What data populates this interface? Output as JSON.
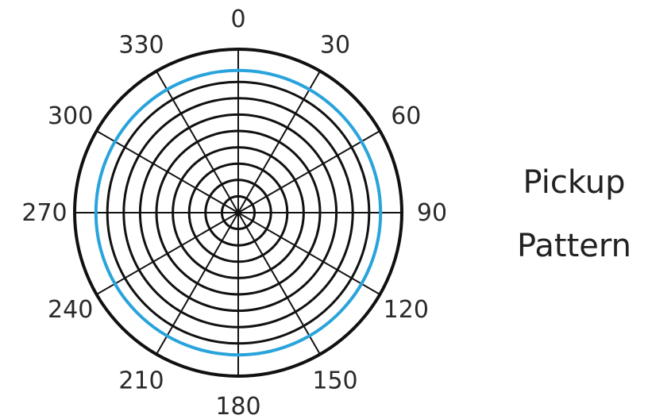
{
  "chart_data": {
    "type": "polar",
    "angular_ticks": [
      0,
      30,
      60,
      90,
      120,
      150,
      180,
      210,
      240,
      270,
      300,
      330
    ],
    "ring_count": 8,
    "series": [
      {
        "values_r": 0.87,
        "color": "#29a3db",
        "shape": "circle"
      }
    ],
    "grid": true
  },
  "caption": {
    "line1": "Pickup",
    "line2": "Pattern"
  },
  "colors": {
    "grid": "#111111",
    "pattern": "#29a3db",
    "text": "#2a2a2a"
  }
}
